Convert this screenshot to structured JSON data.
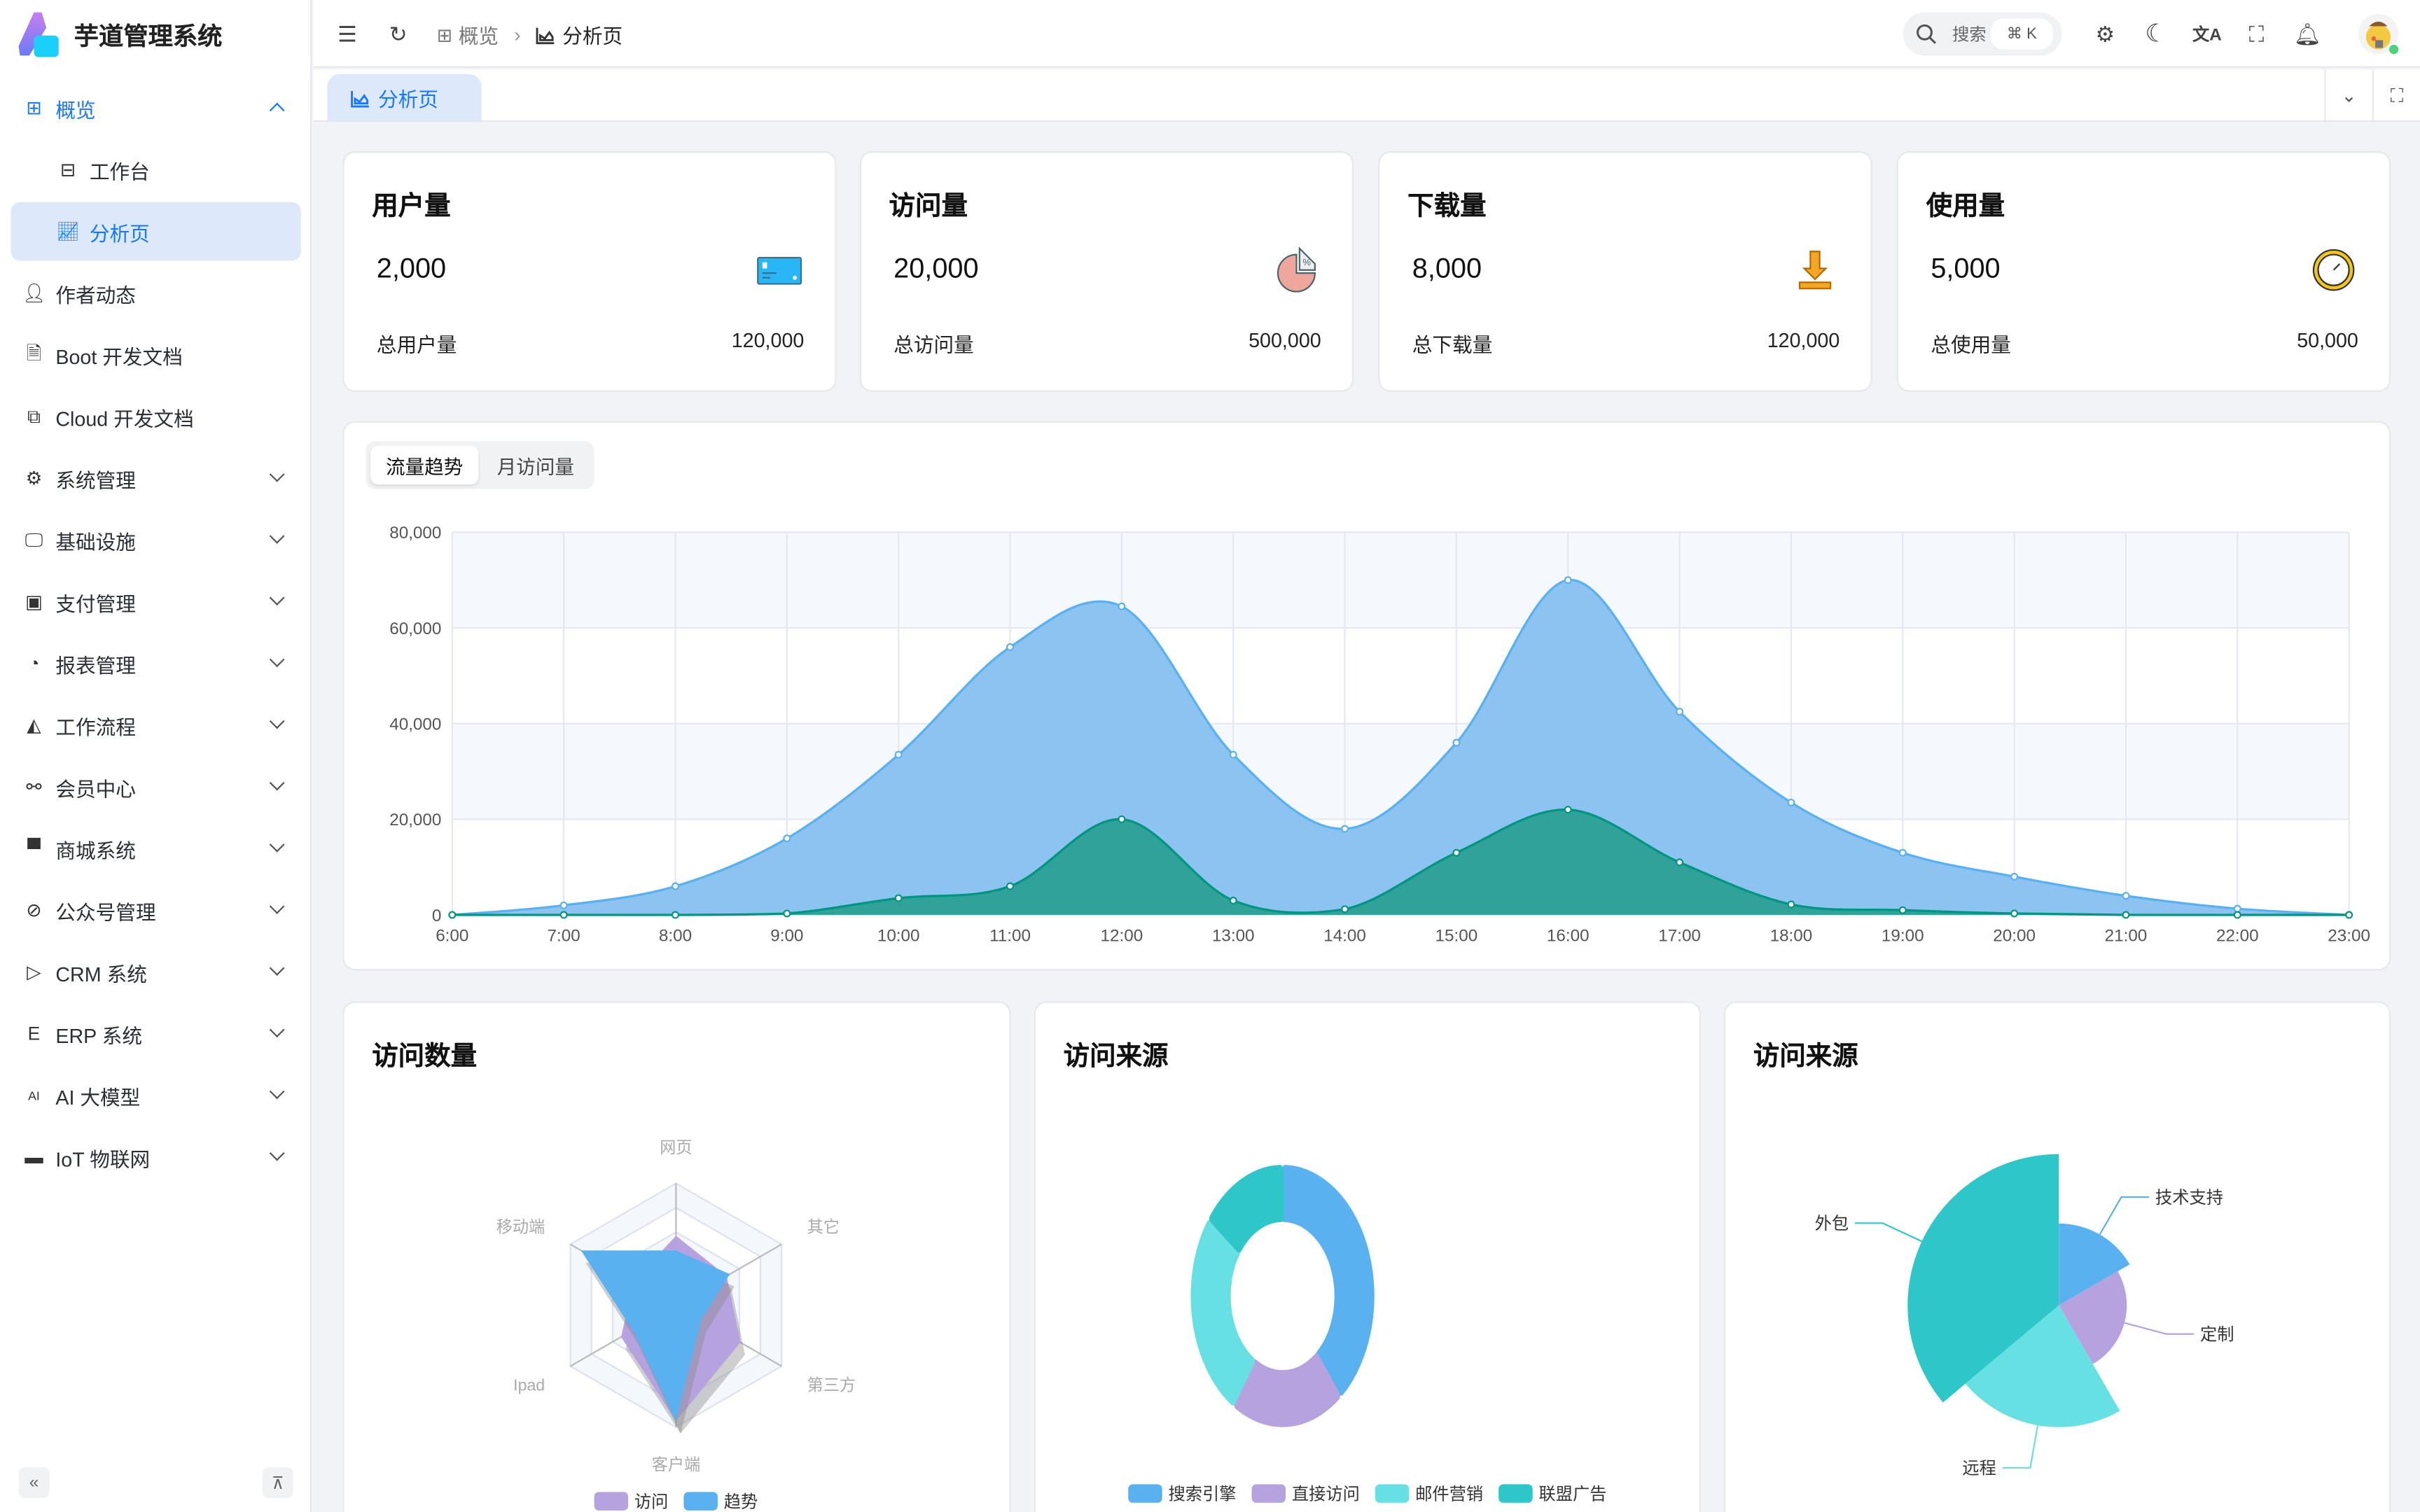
{
  "app": {
    "title": "芋道管理系统"
  },
  "sidebar": {
    "items": [
      {
        "label": "概览",
        "icon": "dashboard-icon",
        "expanded": true
      },
      {
        "label": "工作台",
        "icon": "workspace-icon"
      },
      {
        "label": "分析页",
        "icon": "area-chart-icon",
        "selected": true
      },
      {
        "label": "作者动态",
        "icon": "user-icon"
      },
      {
        "label": "Boot 开发文档",
        "icon": "document-icon"
      },
      {
        "label": "Cloud 开发文档",
        "icon": "documents-icon"
      },
      {
        "label": "系统管理",
        "icon": "gear-icon"
      },
      {
        "label": "基础设施",
        "icon": "monitor-icon"
      },
      {
        "label": "支付管理",
        "icon": "payment-icon"
      },
      {
        "label": "报表管理",
        "icon": "pie-icon"
      },
      {
        "label": "工作流程",
        "icon": "workflow-icon"
      },
      {
        "label": "会员中心",
        "icon": "bike-icon"
      },
      {
        "label": "商城系统",
        "icon": "shop-icon"
      },
      {
        "label": "公众号管理",
        "icon": "compass-icon"
      },
      {
        "label": "CRM 系统",
        "icon": "crm-icon"
      },
      {
        "label": "ERP 系统",
        "icon": "erp-icon"
      },
      {
        "label": "AI 大模型",
        "icon": "ai-icon"
      },
      {
        "label": "IoT 物联网",
        "icon": "iot-icon"
      }
    ]
  },
  "header": {
    "breadcrumb": [
      "概览",
      "分析页"
    ],
    "search_placeholder": "搜索",
    "search_shortcut": "⌘ K"
  },
  "tabs": [
    {
      "label": "分析页",
      "active": true
    }
  ],
  "stats": [
    {
      "title": "用户量",
      "value": "2,000",
      "total_label": "总用户量",
      "total": "120,000",
      "icon": "credit-card-icon"
    },
    {
      "title": "访问量",
      "value": "20,000",
      "total_label": "总访问量",
      "total": "500,000",
      "icon": "pie-percent-icon"
    },
    {
      "title": "下载量",
      "value": "8,000",
      "total_label": "总下载量",
      "total": "120,000",
      "icon": "download-icon"
    },
    {
      "title": "使用量",
      "value": "5,000",
      "total_label": "总使用量",
      "total": "50,000",
      "icon": "clock-icon"
    }
  ],
  "trend": {
    "tabs": [
      "流量趋势",
      "月访问量"
    ],
    "active_tab": 0
  },
  "panels": {
    "radar_title": "访问数量",
    "donut_title": "访问来源",
    "rose_title": "访问来源"
  },
  "chart_data": [
    {
      "type": "area",
      "x": [
        "6:00",
        "7:00",
        "8:00",
        "9:00",
        "10:00",
        "11:00",
        "12:00",
        "13:00",
        "14:00",
        "15:00",
        "16:00",
        "17:00",
        "18:00",
        "19:00",
        "20:00",
        "21:00",
        "22:00",
        "23:00"
      ],
      "ylim": [
        0,
        80000
      ],
      "yticks": [
        "0",
        "20,000",
        "40,000",
        "60,000",
        "80,000"
      ],
      "grid": true,
      "series": [
        {
          "values": [
            0,
            2000,
            6000,
            16000,
            33500,
            56000,
            64500,
            33500,
            18000,
            36000,
            70000,
            42500,
            23500,
            13000,
            8000,
            4000,
            1300,
            0
          ],
          "color": "#5ab1ef",
          "fill": "#8cc3f1"
        },
        {
          "values": [
            0,
            0,
            0,
            300,
            3500,
            6000,
            20000,
            3000,
            1200,
            13000,
            22000,
            11000,
            2200,
            1000,
            300,
            0,
            0,
            0
          ],
          "color": "#019680",
          "fill": "#31a29a"
        }
      ]
    },
    {
      "type": "radar",
      "indicators": [
        "网页",
        "其它",
        "第三方",
        "客户端",
        "Ipad",
        "移动端"
      ],
      "max": 100,
      "series": [
        {
          "name": "访问",
          "values": [
            57,
            48,
            61,
            95,
            52,
            40
          ],
          "color": "#b6a2de"
        },
        {
          "name": "趋势",
          "values": [
            45,
            51,
            24,
            95,
            41,
            90
          ],
          "color": "#5ab1ef"
        }
      ]
    },
    {
      "type": "pie",
      "series": [
        {
          "name": "搜索引擎",
          "value": 39,
          "color": "#5ab1ef"
        },
        {
          "name": "直接访问",
          "value": 20,
          "color": "#b6a2de"
        },
        {
          "name": "邮件营销",
          "value": 26,
          "color": "#67e0e3"
        },
        {
          "name": "联盟广告",
          "value": 15,
          "color": "#2ec7c9"
        }
      ]
    },
    {
      "type": "pie",
      "rose": true,
      "series": [
        {
          "name": "技术支持",
          "value": 60,
          "color": "#5ab1ef"
        },
        {
          "name": "定制",
          "value": 90,
          "color": "#b6a2de"
        },
        {
          "name": "远程",
          "value": 80,
          "color": "#67e0e3"
        },
        {
          "name": "外包",
          "value": 130,
          "color": "#2ec7c9"
        }
      ]
    }
  ]
}
